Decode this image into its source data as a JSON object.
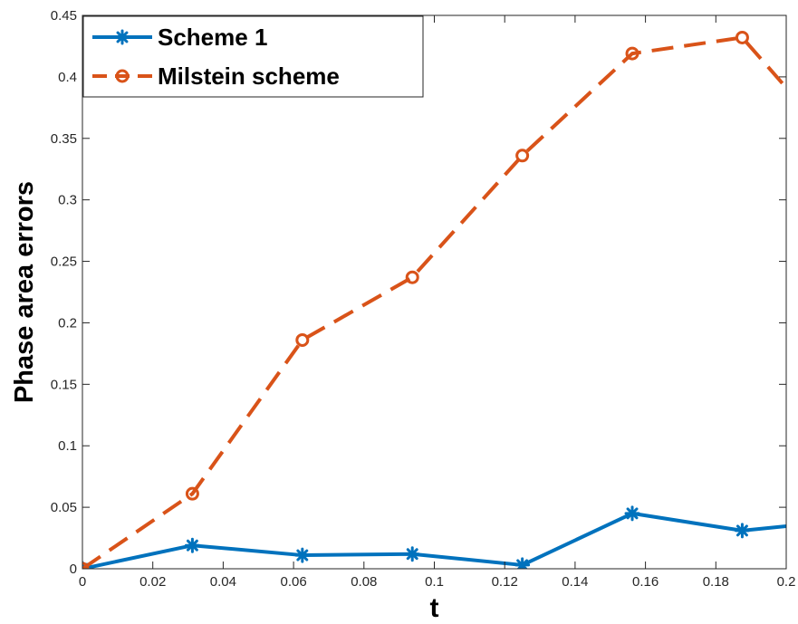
{
  "chart_data": {
    "type": "line",
    "xlabel": "t",
    "ylabel": "Phase area errors",
    "xlim": [
      0,
      0.2
    ],
    "ylim": [
      0,
      0.45
    ],
    "xticks": [
      "0",
      "0.02",
      "0.04",
      "0.06",
      "0.08",
      "0.1",
      "0.12",
      "0.14",
      "0.16",
      "0.18",
      "0.2"
    ],
    "yticks": [
      "0",
      "0.05",
      "0.1",
      "0.15",
      "0.2",
      "0.25",
      "0.3",
      "0.35",
      "0.4",
      "0.45"
    ],
    "grid": false,
    "legend_position": "top-left",
    "series": [
      {
        "name": "Scheme 1",
        "color": "#0072BD",
        "style": "solid",
        "marker": "asterisk",
        "x": [
          0,
          0.03125,
          0.0625,
          0.09375,
          0.125,
          0.15625,
          0.1875,
          0.21875
        ],
        "y": [
          0,
          0.019,
          0.011,
          0.012,
          0.003,
          0.045,
          0.031,
          0.04
        ]
      },
      {
        "name": "Milstein scheme",
        "color": "#D95319",
        "style": "dashed",
        "marker": "circle",
        "x": [
          0,
          0.03125,
          0.0625,
          0.09375,
          0.125,
          0.15625,
          0.1875,
          0.21875
        ],
        "y": [
          0,
          0.061,
          0.186,
          0.237,
          0.336,
          0.419,
          0.432,
          0.33
        ]
      }
    ]
  }
}
